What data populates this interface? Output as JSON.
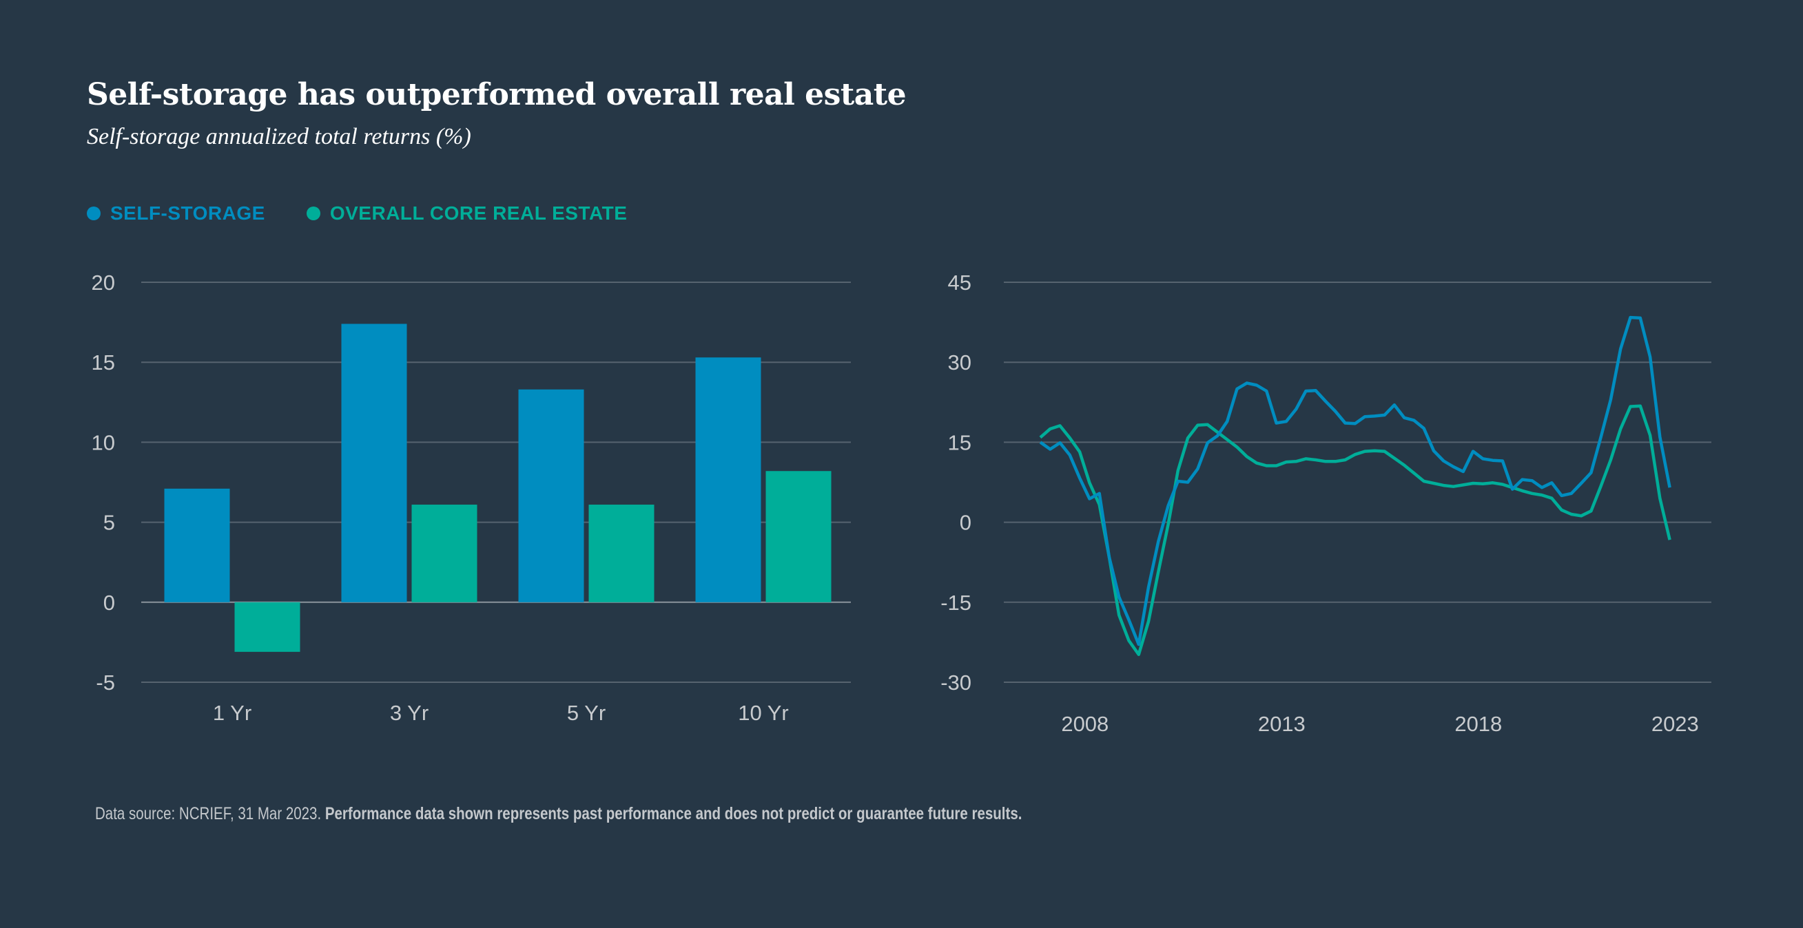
{
  "title": "Self-storage has outperformed overall real estate",
  "subtitle": "Self-storage annualized total returns (%)",
  "legend": [
    {
      "label": "SELF-STORAGE",
      "color": "#008DC0"
    },
    {
      "label": "OVERALL CORE REAL ESTATE",
      "color": "#00AE99"
    }
  ],
  "footnote": {
    "source": "Data source: NCRIEF, 31 Mar 2023.",
    "disclaimer": "Performance data shown represents past performance and does not predict or guarantee future results."
  },
  "chart_data": [
    {
      "type": "bar",
      "categories": [
        "1 Yr",
        "3 Yr",
        "5 Yr",
        "10 Yr"
      ],
      "series": [
        {
          "name": "SELF-STORAGE",
          "color": "#008DC0",
          "values": [
            7.1,
            17.4,
            13.3,
            15.3
          ]
        },
        {
          "name": "OVERALL CORE REAL ESTATE",
          "color": "#00AE99",
          "values": [
            -3.1,
            6.1,
            6.1,
            8.2
          ]
        }
      ],
      "ylim": [
        -5,
        20
      ],
      "yticks": [
        "20",
        "15",
        "10",
        "5",
        "0",
        "-5"
      ],
      "grid": true
    },
    {
      "type": "line",
      "x_start": "2007 Q1",
      "x_end": "2023 Q1",
      "x_frequency": "quarterly",
      "xticks": [
        "2008",
        "2013",
        "2018",
        "2023"
      ],
      "ylim": [
        -30,
        45
      ],
      "yticks": [
        "45",
        "30",
        "15",
        "0",
        "-15",
        "-30"
      ],
      "grid": true,
      "series": [
        {
          "name": "SELF-STORAGE",
          "color": "#008DC0",
          "values": [
            15.0,
            13.7,
            14.9,
            12.6,
            8.3,
            4.4,
            5.4,
            -6.5,
            -14.0,
            -18.3,
            -22.9,
            -12.2,
            -3.6,
            3.1,
            7.7,
            7.5,
            10.0,
            14.9,
            16.2,
            18.9,
            25.0,
            26.1,
            25.7,
            24.6,
            18.6,
            18.9,
            21.2,
            24.6,
            24.7,
            22.7,
            20.8,
            18.6,
            18.5,
            19.8,
            19.9,
            20.1,
            22.0,
            19.6,
            19.1,
            17.6,
            13.4,
            11.5,
            10.4,
            9.5,
            13.3,
            11.9,
            11.6,
            11.5,
            6.2,
            8.0,
            7.8,
            6.5,
            7.4,
            5.0,
            5.4,
            7.3,
            9.3,
            16.0,
            23.0,
            32.5,
            38.4,
            38.3,
            31.0,
            16.0,
            6.5
          ]
        },
        {
          "name": "OVERALL CORE REAL ESTATE",
          "color": "#00AE99",
          "values": [
            15.9,
            17.5,
            18.1,
            15.8,
            13.2,
            7.4,
            3.3,
            -6.5,
            -17.4,
            -22.2,
            -24.8,
            -18.6,
            -9.3,
            -0.4,
            9.7,
            15.8,
            18.2,
            18.3,
            16.9,
            15.5,
            14.1,
            12.3,
            11.1,
            10.6,
            10.6,
            11.3,
            11.4,
            11.9,
            11.7,
            11.4,
            11.4,
            11.7,
            12.7,
            13.3,
            13.4,
            13.3,
            12.0,
            10.7,
            9.2,
            7.7,
            7.3,
            6.9,
            6.7,
            7.0,
            7.3,
            7.2,
            7.4,
            7.1,
            6.5,
            5.9,
            5.4,
            5.1,
            4.5,
            2.3,
            1.5,
            1.2,
            2.1,
            6.8,
            11.7,
            17.5,
            21.7,
            21.8,
            16.3,
            4.5,
            -3.3
          ]
        }
      ]
    }
  ]
}
